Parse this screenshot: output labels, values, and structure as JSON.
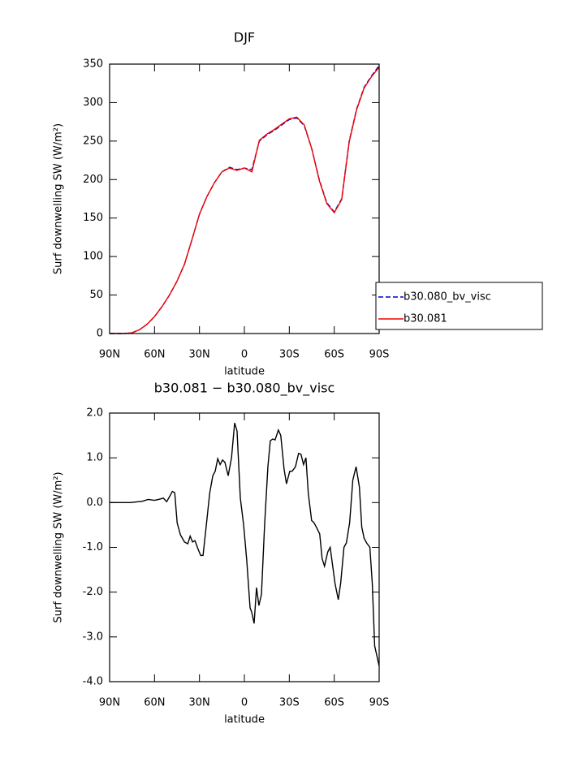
{
  "chart_data": [
    {
      "type": "line",
      "title": "DJF",
      "xlabel": "latitude",
      "ylabel": "Surf downwelling SW (W/m²)",
      "x": [
        90,
        85,
        80,
        75,
        70,
        65,
        60,
        55,
        50,
        45,
        40,
        35,
        30,
        25,
        20,
        15,
        10,
        5,
        0,
        -5,
        -10,
        -15,
        -20,
        -25,
        -30,
        -35,
        -40,
        -45,
        -50,
        -55,
        -60,
        -65,
        -70,
        -75,
        -80,
        -85,
        -90
      ],
      "series": [
        {
          "name": "b30.080_bv_visc",
          "color": "#0000cc",
          "line_style": "dashed",
          "values": [
            0,
            0,
            0,
            1,
            5,
            12,
            22,
            35,
            50,
            68,
            90,
            122,
            155,
            178,
            196,
            210,
            216,
            213,
            215,
            213,
            250,
            258,
            264,
            271,
            278,
            280,
            270,
            240,
            200,
            170,
            158,
            175,
            250,
            292,
            320,
            335,
            348
          ]
        },
        {
          "name": "b30.081",
          "color": "#ee0000",
          "line_style": "solid",
          "values": [
            0,
            0,
            0,
            1,
            5,
            12,
            22,
            35,
            50,
            68,
            90,
            122,
            155,
            178,
            196,
            210,
            215,
            212,
            215,
            210,
            251,
            259,
            265,
            272,
            279,
            281,
            271,
            240,
            199,
            169,
            157,
            174,
            249,
            291,
            319,
            334,
            346
          ]
        }
      ],
      "xlim": [
        90,
        -90
      ],
      "xticks": [
        {
          "value": 90,
          "label": "90N"
        },
        {
          "value": 60,
          "label": "60N"
        },
        {
          "value": 30,
          "label": "30N"
        },
        0,
        {
          "value": -30,
          "label": "30S"
        },
        {
          "value": -60,
          "label": "60S"
        },
        {
          "value": -90,
          "label": "90S"
        }
      ],
      "ylim": [
        0,
        350
      ],
      "yticks": [
        0,
        50,
        100,
        150,
        200,
        250,
        300,
        350
      ],
      "legend": "right"
    },
    {
      "type": "line",
      "title": "b30.081 − b30.080_bv_visc",
      "xlabel": "latitude",
      "ylabel": "Surf downwelling SW (W/m²)",
      "x": [
        90,
        76.2,
        68.1,
        64.3,
        60,
        56.2,
        54.1,
        51.9,
        49.7,
        48.1,
        46.5,
        44.9,
        42.7,
        40,
        37.8,
        36.2,
        34.6,
        33,
        30.8,
        29.2,
        27.6,
        25.4,
        23.2,
        21.1,
        19.5,
        17.8,
        16.2,
        14.6,
        13,
        10.8,
        8.6,
        6.5,
        4.9,
        2.7,
        0.5,
        -1.6,
        -3.8,
        -4.9,
        -6.5,
        -8.1,
        -9.7,
        -11.4,
        -13.5,
        -15.7,
        -17.3,
        -18.9,
        -20.5,
        -22.7,
        -24.3,
        -26.5,
        -28.1,
        -30.3,
        -31.9,
        -34.1,
        -36.2,
        -37.8,
        -39.5,
        -41.1,
        -42.7,
        -44.9,
        -46.5,
        -48.1,
        -50.3,
        -51.9,
        -53.5,
        -55.7,
        -57.3,
        -58.9,
        -60.5,
        -62.7,
        -64.3,
        -66.5,
        -68.1,
        -70.3,
        -72.4,
        -74.6,
        -76.8,
        -78.4,
        -80,
        -81.6,
        -83.8,
        -85.4,
        -87,
        -90
      ],
      "series": [
        {
          "color": "#000000",
          "line_style": "solid",
          "values": [
            0,
            0,
            0.03,
            0.07,
            0.05,
            0.08,
            0.1,
            0.02,
            0.15,
            0.25,
            0.22,
            -0.45,
            -0.72,
            -0.88,
            -0.92,
            -0.75,
            -0.88,
            -0.85,
            -1.05,
            -1.18,
            -1.18,
            -0.5,
            0.2,
            0.6,
            0.7,
            0.98,
            0.85,
            0.95,
            0.9,
            0.6,
            1.0,
            1.78,
            1.6,
            0.1,
            -0.5,
            -1.3,
            -2.35,
            -2.45,
            -2.7,
            -1.9,
            -2.3,
            -2.05,
            -0.5,
            0.8,
            1.38,
            1.42,
            1.4,
            1.62,
            1.5,
            0.75,
            0.42,
            0.7,
            0.7,
            0.8,
            1.1,
            1.08,
            0.85,
            1.0,
            0.2,
            -0.4,
            -0.45,
            -0.55,
            -0.7,
            -1.25,
            -1.42,
            -1.1,
            -1.0,
            -1.4,
            -1.8,
            -2.17,
            -1.8,
            -1.0,
            -0.9,
            -0.45,
            0.5,
            0.8,
            0.35,
            -0.55,
            -0.8,
            -0.9,
            -1.0,
            -1.8,
            -3.2,
            -3.65
          ]
        }
      ],
      "xlim": [
        90,
        -90
      ],
      "xticks": [
        {
          "value": 90,
          "label": "90N"
        },
        {
          "value": 60,
          "label": "60N"
        },
        {
          "value": 30,
          "label": "30N"
        },
        0,
        {
          "value": -30,
          "label": "30S"
        },
        {
          "value": -60,
          "label": "60S"
        },
        {
          "value": -90,
          "label": "90S"
        }
      ],
      "ylim": [
        -4,
        2
      ],
      "yticks": [
        {
          "value": -4,
          "label": "-4.0"
        },
        {
          "value": -3,
          "label": "-3.0"
        },
        {
          "value": -2,
          "label": "-2.0"
        },
        {
          "value": -1,
          "label": "-1.0"
        },
        {
          "value": 0,
          "label": "0.0"
        },
        {
          "value": 1,
          "label": "1.0"
        },
        {
          "value": 2,
          "label": "2.0"
        }
      ]
    }
  ]
}
